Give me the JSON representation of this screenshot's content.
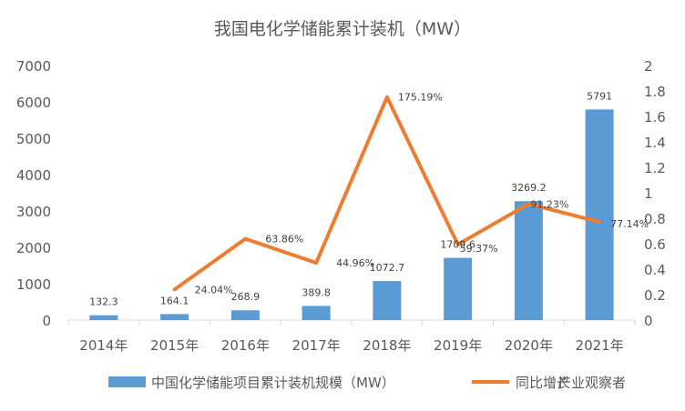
{
  "chart_data": {
    "type": "bar",
    "title": "我国电化学储能累计装机（MW）",
    "categories": [
      "2014年",
      "2015年",
      "2016年",
      "2017年",
      "2018年",
      "2019年",
      "2020年",
      "2021年"
    ],
    "series": [
      {
        "name": "中国化学储能项目累计装机规模（MW）",
        "type": "bar",
        "axis": "left",
        "color": "#5B9BD5",
        "values": [
          132.3,
          164.1,
          268.9,
          389.8,
          1072.7,
          1709.6,
          3269.2,
          5791
        ],
        "labels": [
          "132.3",
          "164.1",
          "268.9",
          "389.8",
          "1072.7",
          "1709.6",
          "3269.2",
          "5791"
        ]
      },
      {
        "name": "同比增长",
        "type": "line",
        "axis": "right",
        "color": "#ED7D31",
        "values": [
          null,
          0.2404,
          0.6386,
          0.4496,
          1.7519,
          0.5937,
          0.9123,
          0.7714
        ],
        "labels": [
          "",
          "24.04%",
          "63.86%",
          "44.96%",
          "175.19%",
          "59.37%",
          "91.23%",
          "77.14%"
        ]
      }
    ],
    "ylim": [
      0,
      7000
    ],
    "yticks": [
      "0",
      "1000",
      "2000",
      "3000",
      "4000",
      "5000",
      "6000",
      "7000"
    ],
    "y2lim": [
      0,
      2
    ],
    "y2ticks": [
      "0",
      "0.2",
      "0.4",
      "0.6",
      "0.8",
      "1",
      "1.2",
      "1.4",
      "1.6",
      "1.8",
      "2"
    ],
    "grid": false,
    "legend_position": "bottom",
    "watermark": "产业观察者"
  }
}
